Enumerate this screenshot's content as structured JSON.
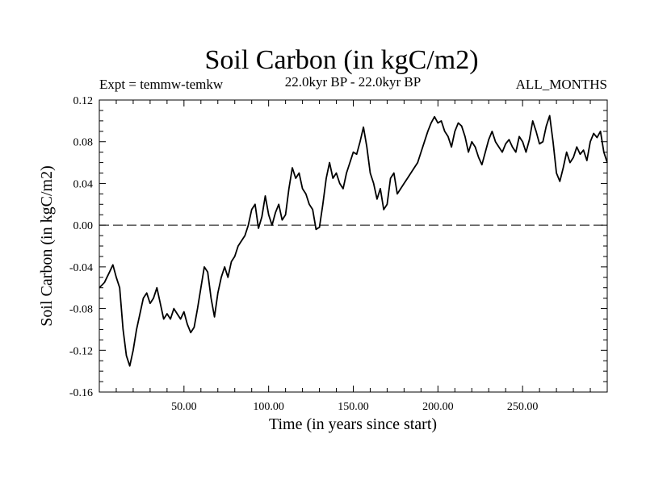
{
  "chart_data": {
    "type": "line",
    "title": "Soil Carbon (in kgC/m2)",
    "experiment_label": "Expt = temmw-temkw",
    "period_label": "22.0kyr BP - 22.0kyr BP",
    "months_label": "ALL_MONTHS",
    "xlabel": "Time (in years since start)",
    "ylabel": "Soil Carbon (in kgC/m2)",
    "xlim": [
      0,
      300
    ],
    "ylim": [
      -0.16,
      0.12
    ],
    "xticks": [
      50,
      100,
      150,
      200,
      250
    ],
    "xtick_labels": [
      "50.00",
      "100.00",
      "150.00",
      "200.00",
      "250.00"
    ],
    "yticks": [
      0.12,
      0.08,
      0.04,
      0.0,
      -0.04,
      -0.08,
      -0.12,
      -0.16
    ],
    "ytick_labels": [
      "0.12",
      "0.08",
      "0.04",
      "0.00",
      "-0.04",
      "-0.08",
      "-0.12",
      "-0.16"
    ],
    "reference_line": 0.0,
    "series": [
      {
        "name": "Soil Carbon",
        "x": [
          0,
          3,
          6,
          8,
          10,
          12,
          14,
          16,
          18,
          20,
          22,
          24,
          26,
          28,
          30,
          32,
          34,
          36,
          38,
          40,
          42,
          44,
          46,
          48,
          50,
          52,
          54,
          56,
          58,
          60,
          62,
          64,
          66,
          68,
          70,
          72,
          74,
          76,
          78,
          80,
          82,
          84,
          86,
          88,
          90,
          92,
          94,
          96,
          98,
          100,
          102,
          104,
          106,
          108,
          110,
          112,
          114,
          116,
          118,
          120,
          122,
          124,
          126,
          128,
          130,
          132,
          134,
          136,
          138,
          140,
          142,
          144,
          146,
          148,
          150,
          152,
          154,
          156,
          158,
          160,
          162,
          164,
          166,
          168,
          170,
          172,
          174,
          176,
          178,
          180,
          182,
          184,
          186,
          188,
          190,
          192,
          194,
          196,
          198,
          200,
          202,
          204,
          206,
          208,
          210,
          212,
          214,
          216,
          218,
          220,
          222,
          224,
          226,
          228,
          230,
          232,
          234,
          236,
          238,
          240,
          242,
          244,
          246,
          248,
          250,
          252,
          254,
          256,
          258,
          260,
          262,
          264,
          266,
          268,
          270,
          272,
          274,
          276,
          278,
          280,
          282,
          284,
          286,
          288,
          290,
          292,
          294,
          296,
          298,
          300
        ],
        "values": [
          -0.06,
          -0.055,
          -0.045,
          -0.038,
          -0.05,
          -0.06,
          -0.1,
          -0.125,
          -0.135,
          -0.12,
          -0.1,
          -0.085,
          -0.07,
          -0.065,
          -0.075,
          -0.07,
          -0.06,
          -0.075,
          -0.09,
          -0.085,
          -0.09,
          -0.08,
          -0.085,
          -0.09,
          -0.083,
          -0.095,
          -0.103,
          -0.098,
          -0.08,
          -0.06,
          -0.04,
          -0.045,
          -0.07,
          -0.088,
          -0.065,
          -0.05,
          -0.04,
          -0.05,
          -0.035,
          -0.03,
          -0.02,
          -0.015,
          -0.01,
          0.0,
          0.015,
          0.02,
          -0.003,
          0.008,
          0.028,
          0.01,
          0.0,
          0.012,
          0.02,
          0.005,
          0.01,
          0.035,
          0.055,
          0.045,
          0.05,
          0.035,
          0.03,
          0.02,
          0.015,
          -0.004,
          -0.002,
          0.02,
          0.045,
          0.06,
          0.045,
          0.05,
          0.04,
          0.035,
          0.05,
          0.06,
          0.07,
          0.068,
          0.08,
          0.094,
          0.075,
          0.05,
          0.04,
          0.025,
          0.035,
          0.015,
          0.02,
          0.045,
          0.05,
          0.03,
          0.035,
          0.04,
          0.045,
          0.05,
          0.055,
          0.06,
          0.07,
          0.08,
          0.09,
          0.098,
          0.104,
          0.098,
          0.1,
          0.09,
          0.085,
          0.075,
          0.09,
          0.098,
          0.095,
          0.085,
          0.07,
          0.08,
          0.075,
          0.065,
          0.058,
          0.07,
          0.082,
          0.09,
          0.08,
          0.075,
          0.07,
          0.078,
          0.082,
          0.075,
          0.07,
          0.085,
          0.08,
          0.07,
          0.082,
          0.1,
          0.09,
          0.078,
          0.08,
          0.095,
          0.105,
          0.08,
          0.05,
          0.042,
          0.055,
          0.07,
          0.06,
          0.065,
          0.075,
          0.068,
          0.072,
          0.062,
          0.08,
          0.088,
          0.084,
          0.09,
          0.07,
          0.06
        ]
      }
    ]
  }
}
